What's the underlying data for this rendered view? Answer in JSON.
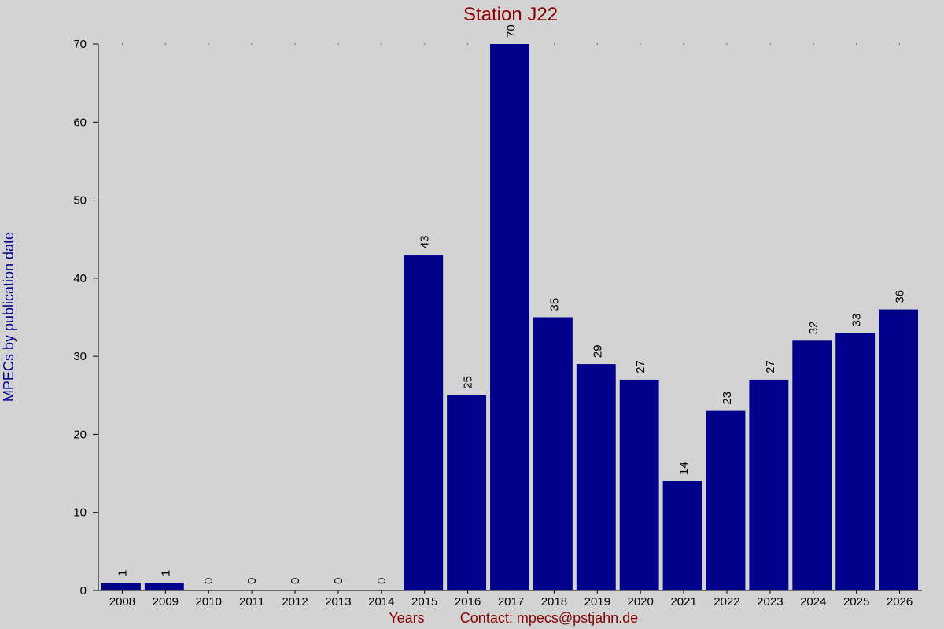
{
  "chart_data": {
    "type": "bar",
    "title": "Station J22",
    "xlabel": "Years",
    "ylabel": "MPECs by publication date",
    "footer_contact": "Contact: mpecs@pstjahn.de",
    "categories": [
      "2008",
      "2009",
      "2010",
      "2011",
      "2012",
      "2013",
      "2014",
      "2015",
      "2016",
      "2017",
      "2018",
      "2019",
      "2020",
      "2021",
      "2022",
      "2023",
      "2024",
      "2025",
      "2026"
    ],
    "values": [
      1,
      1,
      0,
      0,
      0,
      0,
      0,
      43,
      25,
      70,
      35,
      29,
      27,
      14,
      23,
      27,
      32,
      33,
      36
    ],
    "ylim": [
      0,
      70
    ],
    "yticks": [
      "0",
      "10",
      "20",
      "30",
      "40",
      "50",
      "60",
      "70"
    ],
    "grid": false,
    "data_labels": true,
    "colors": {
      "background": "#d3d3d3",
      "bar": "#00008b",
      "title": "#8b0000",
      "ylabel": "#00008b",
      "xlabel": "#8b0000"
    }
  }
}
